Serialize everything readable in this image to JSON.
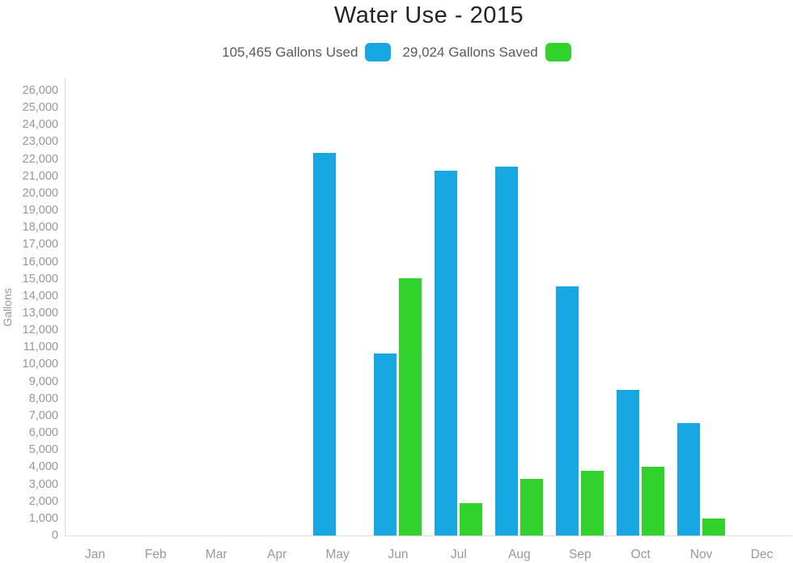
{
  "chart_data": {
    "type": "bar",
    "title": "Water Use - 2015",
    "ylabel": "Gallons",
    "categories": [
      "Jan",
      "Feb",
      "Mar",
      "Apr",
      "May",
      "Jun",
      "Jul",
      "Aug",
      "Sep",
      "Oct",
      "Nov",
      "Dec"
    ],
    "series": [
      {
        "name": "Gallons Used",
        "legend_label": "105,465 Gallons Used",
        "total": "105,465",
        "color": "#17a8e3",
        "values": [
          0,
          0,
          0,
          0,
          22350,
          10650,
          21300,
          21550,
          14550,
          8500,
          6565,
          0
        ]
      },
      {
        "name": "Gallons Saved",
        "legend_label": "29,024 Gallons Saved",
        "total": "29,024",
        "color": "#32d22c",
        "values": [
          0,
          0,
          0,
          0,
          0,
          15050,
          1874,
          3300,
          3800,
          4000,
          1000,
          0
        ]
      }
    ],
    "ylim": [
      0,
      26000
    ],
    "ytick_step": 1000,
    "ytick_format": "comma",
    "grid": false,
    "legend_position": "top",
    "background": "#ffffff",
    "axis_color": "#dcdcde",
    "tick_label_color": "#96969b",
    "title_color": "#222326",
    "legend_text_color": "#59595e"
  }
}
